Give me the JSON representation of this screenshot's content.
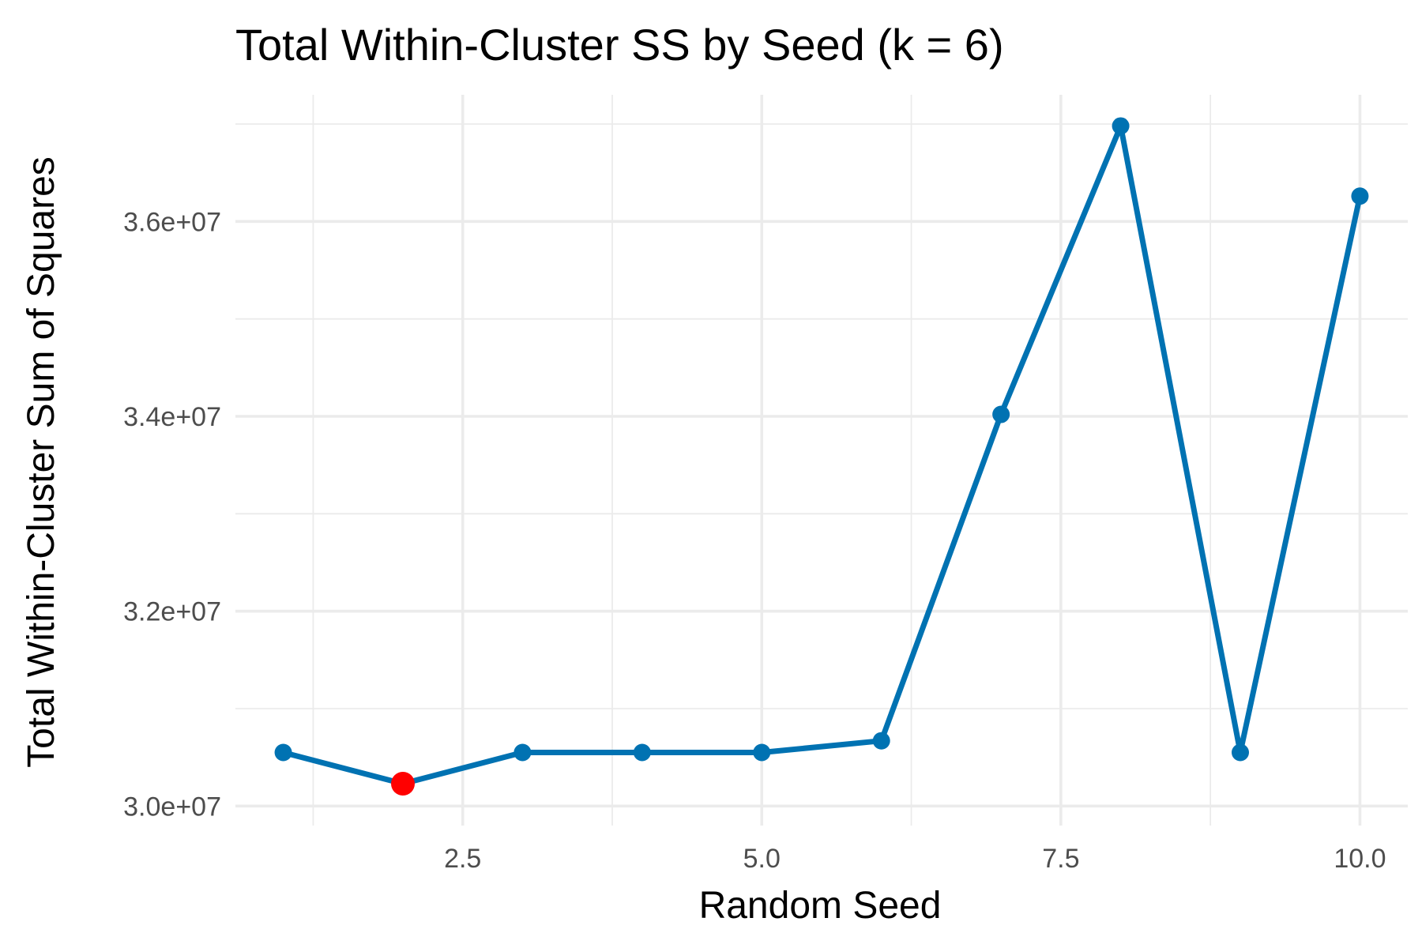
{
  "chart_data": {
    "type": "line",
    "title": "Total Within-Cluster SS by Seed (k = 6)",
    "xlabel": "Random Seed",
    "ylabel": "Total Within-Cluster Sum of Squares",
    "x": [
      1,
      2,
      3,
      4,
      5,
      6,
      7,
      8,
      9,
      10
    ],
    "series": [
      {
        "values": [
          30550000,
          30230000,
          30550000,
          30550000,
          30550000,
          30670000,
          34020000,
          36980000,
          30550000,
          36260000
        ]
      }
    ],
    "highlight": {
      "x": 2,
      "y": 30230000,
      "color": "#ff0000"
    },
    "xlim": [
      0.6,
      10.4
    ],
    "ylim": [
      29800000,
      37300000
    ],
    "x_ticks": [
      2.5,
      5.0,
      7.5,
      10.0
    ],
    "x_tick_labels": [
      "2.5",
      "5.0",
      "7.5",
      "10.0"
    ],
    "y_ticks": [
      30000000,
      32000000,
      34000000,
      36000000
    ],
    "y_tick_labels": [
      "3.0e+07",
      "3.2e+07",
      "3.4e+07",
      "3.6e+07"
    ],
    "grid": true,
    "legend": "none",
    "colors": {
      "line": "#0072b2",
      "highlight": "#ff0000"
    }
  }
}
